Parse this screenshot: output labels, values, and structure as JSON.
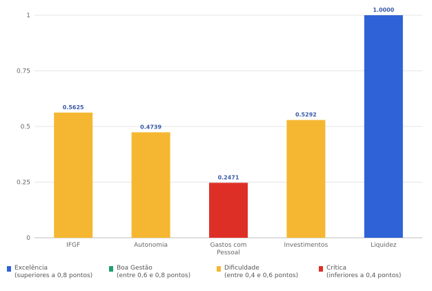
{
  "chart_data": {
    "type": "bar",
    "categories": [
      "IFGF",
      "Autonomia",
      "Gastos com\nPessoal",
      "Investimentos",
      "Liquidez"
    ],
    "values": [
      0.5625,
      0.4739,
      0.2471,
      0.5292,
      1.0
    ],
    "data_labels": [
      "0.5625",
      "0.4739",
      "0.2471",
      "0.5292",
      "1.0000"
    ],
    "bar_colors": [
      "#f5b731",
      "#f5b731",
      "#de2f26",
      "#f5b731",
      "#2e62d6"
    ],
    "yticks": [
      "0",
      "0.25",
      "0.5",
      "0.75",
      "1"
    ],
    "ylim": [
      0,
      1
    ],
    "grid": true,
    "title": "",
    "xlabel": "",
    "ylabel": ""
  },
  "legend": {
    "items": [
      {
        "line1": "Excelência",
        "line2": "(superiores a 0,8 pontos)",
        "color": "#2e62d6"
      },
      {
        "line1": "Boa Gestão",
        "line2": "(entre 0,6 e 0,8 pontos)",
        "color": "#1f9e6e"
      },
      {
        "line1": "Dificuldade",
        "line2": "(entre 0,4 e 0,6 pontos)",
        "color": "#f5b731"
      },
      {
        "line1": "Crítica",
        "line2": "(inferiores a 0,4 pontos)",
        "color": "#de2f26"
      }
    ]
  }
}
